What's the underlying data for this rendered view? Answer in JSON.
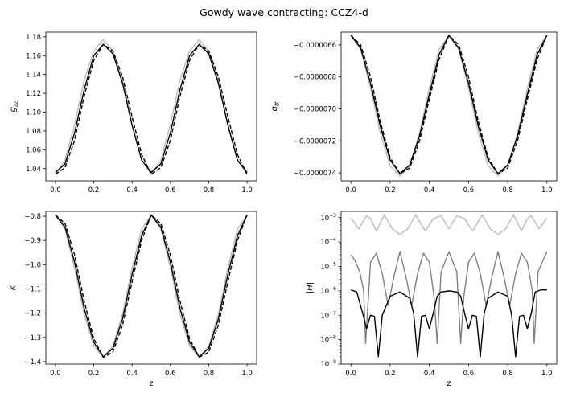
{
  "figure": {
    "title": "Gowdy wave contracting: CCZ4-d"
  },
  "chart_data": [
    {
      "type": "line",
      "ylabel": "g_zz",
      "xlabel": "",
      "xlim": [
        -0.05,
        1.05
      ],
      "ylim": [
        1.027,
        1.185
      ],
      "x_ticks": [
        0.0,
        0.2,
        0.4,
        0.6,
        0.8,
        1.0
      ],
      "x_tick_labels": [
        "0.0",
        "0.2",
        "0.4",
        "0.6",
        "0.8",
        "1.0"
      ],
      "y_ticks": [
        1.04,
        1.06,
        1.08,
        1.1,
        1.12,
        1.14,
        1.16,
        1.18
      ],
      "y_tick_labels": [
        "1.04",
        "1.06",
        "1.08",
        "1.10",
        "1.12",
        "1.14",
        "1.16",
        "1.18"
      ],
      "yscale": "linear",
      "grid": false,
      "x": [
        0.0,
        0.05,
        0.1,
        0.15,
        0.2,
        0.25,
        0.3,
        0.35,
        0.4,
        0.45,
        0.5,
        0.55,
        0.6,
        0.65,
        0.7,
        0.75,
        0.8,
        0.85,
        0.9,
        0.95,
        1.0
      ],
      "series": [
        {
          "color": "#bbbbbb",
          "dash": "solid",
          "values": [
            1.034,
            1.049,
            1.087,
            1.134,
            1.165,
            1.177,
            1.165,
            1.134,
            1.087,
            1.049,
            1.034,
            1.049,
            1.087,
            1.134,
            1.165,
            1.177,
            1.165,
            1.134,
            1.087,
            1.049,
            1.034
          ]
        },
        {
          "color": "#000000",
          "dash": "solid",
          "values": [
            1.036,
            1.045,
            1.078,
            1.124,
            1.16,
            1.172,
            1.162,
            1.131,
            1.086,
            1.049,
            1.036,
            1.045,
            1.078,
            1.124,
            1.16,
            1.172,
            1.162,
            1.131,
            1.086,
            1.049,
            1.036
          ]
        },
        {
          "color": "#000000",
          "dash": "dashed",
          "values": [
            1.034,
            1.041,
            1.07,
            1.117,
            1.155,
            1.172,
            1.165,
            1.138,
            1.095,
            1.055,
            1.034,
            1.041,
            1.07,
            1.117,
            1.155,
            1.172,
            1.165,
            1.138,
            1.095,
            1.055,
            1.034
          ]
        }
      ]
    },
    {
      "type": "line",
      "ylabel": "g_tt",
      "xlabel": "",
      "xlim": [
        -0.05,
        1.05
      ],
      "ylim": [
        -7.45e-06,
        -6.52e-06
      ],
      "x_ticks": [
        0.0,
        0.2,
        0.4,
        0.6,
        0.8,
        1.0
      ],
      "x_tick_labels": [
        "0.0",
        "0.2",
        "0.4",
        "0.6",
        "0.8",
        "1.0"
      ],
      "y_ticks": [
        -6.6e-06,
        -6.8e-06,
        -7e-06,
        -7.2e-06,
        -7.4e-06
      ],
      "y_tick_labels": [
        "−0.0000066",
        "−0.0000068",
        "−0.0000070",
        "−0.0000072",
        "−0.0000074"
      ],
      "yscale": "linear",
      "grid": false,
      "x": [
        0.0,
        0.05,
        0.1,
        0.15,
        0.2,
        0.25,
        0.3,
        0.35,
        0.4,
        0.45,
        0.5,
        0.55,
        0.6,
        0.65,
        0.7,
        0.75,
        0.8,
        0.85,
        0.9,
        0.95,
        1.0
      ],
      "series": [
        {
          "color": "#bbbbbb",
          "dash": "solid",
          "values": [
            -6.54e-06,
            -6.629e-06,
            -6.87e-06,
            -7.152e-06,
            -7.356e-06,
            -7.42e-06,
            -7.356e-06,
            -7.152e-06,
            -6.87e-06,
            -6.629e-06,
            -6.54e-06,
            -6.629e-06,
            -6.87e-06,
            -7.152e-06,
            -7.356e-06,
            -7.42e-06,
            -7.356e-06,
            -7.152e-06,
            -6.87e-06,
            -6.629e-06,
            -6.54e-06
          ]
        },
        {
          "color": "#000000",
          "dash": "solid",
          "values": [
            -6.54e-06,
            -6.62e-06,
            -6.84e-06,
            -7.11e-06,
            -7.32e-06,
            -7.405e-06,
            -7.35e-06,
            -7.17e-06,
            -6.91e-06,
            -6.66e-06,
            -6.54e-06,
            -6.62e-06,
            -6.84e-06,
            -7.11e-06,
            -7.32e-06,
            -7.405e-06,
            -7.35e-06,
            -7.17e-06,
            -6.91e-06,
            -6.66e-06,
            -6.54e-06
          ]
        },
        {
          "color": "#000000",
          "dash": "dashed",
          "values": [
            -6.54e-06,
            -6.6e-06,
            -6.8e-06,
            -7.08e-06,
            -7.305e-06,
            -7.405e-06,
            -7.37e-06,
            -7.2e-06,
            -6.94e-06,
            -6.69e-06,
            -6.54e-06,
            -6.6e-06,
            -6.8e-06,
            -7.08e-06,
            -7.305e-06,
            -7.405e-06,
            -7.37e-06,
            -7.2e-06,
            -6.94e-06,
            -6.69e-06,
            -6.54e-06
          ]
        }
      ]
    },
    {
      "type": "line",
      "ylabel": "K",
      "xlabel": "z",
      "xlim": [
        -0.05,
        1.05
      ],
      "ylim": [
        -1.41,
        -0.78
      ],
      "x_ticks": [
        0.0,
        0.2,
        0.4,
        0.6,
        0.8,
        1.0
      ],
      "x_tick_labels": [
        "0.0",
        "0.2",
        "0.4",
        "0.6",
        "0.8",
        "1.0"
      ],
      "y_ticks": [
        -0.8,
        -0.9,
        -1.0,
        -1.1,
        -1.2,
        -1.3,
        -1.4
      ],
      "y_tick_labels": [
        "−0.8",
        "−0.9",
        "−1.0",
        "−1.1",
        "−1.2",
        "−1.3",
        "−1.4"
      ],
      "yscale": "linear",
      "grid": false,
      "x": [
        0.0,
        0.05,
        0.1,
        0.15,
        0.2,
        0.25,
        0.3,
        0.35,
        0.4,
        0.45,
        0.5,
        0.55,
        0.6,
        0.65,
        0.7,
        0.75,
        0.8,
        0.85,
        0.9,
        0.95,
        1.0
      ],
      "series": [
        {
          "color": "#bbbbbb",
          "dash": "solid",
          "values": [
            -0.795,
            -0.853,
            -1.013,
            -1.205,
            -1.335,
            -1.382,
            -1.335,
            -1.205,
            -1.013,
            -0.853,
            -0.795,
            -0.853,
            -1.013,
            -1.205,
            -1.335,
            -1.382,
            -1.335,
            -1.205,
            -1.013,
            -0.853,
            -0.795
          ]
        },
        {
          "color": "#000000",
          "dash": "solid",
          "values": [
            -0.795,
            -0.845,
            -0.99,
            -1.18,
            -1.32,
            -1.38,
            -1.345,
            -1.225,
            -1.04,
            -0.88,
            -0.795,
            -0.845,
            -0.99,
            -1.18,
            -1.32,
            -1.38,
            -1.345,
            -1.225,
            -1.04,
            -0.88,
            -0.795
          ]
        },
        {
          "color": "#000000",
          "dash": "dashed",
          "values": [
            -0.795,
            -0.83,
            -0.96,
            -1.15,
            -1.305,
            -1.382,
            -1.36,
            -1.25,
            -1.07,
            -0.9,
            -0.795,
            -0.83,
            -0.96,
            -1.15,
            -1.305,
            -1.382,
            -1.36,
            -1.25,
            -1.07,
            -0.9,
            -0.795
          ]
        }
      ]
    },
    {
      "type": "line",
      "ylabel": "|H|",
      "xlabel": "z",
      "xlim": [
        -0.05,
        1.05
      ],
      "ylim": [
        1e-09,
        0.0018
      ],
      "x_ticks": [
        0.0,
        0.2,
        0.4,
        0.6,
        0.8,
        1.0
      ],
      "x_tick_labels": [
        "0.0",
        "0.2",
        "0.4",
        "0.6",
        "0.8",
        "1.0"
      ],
      "y_ticks": [
        1e-09,
        1e-08,
        1e-07,
        1e-06,
        1e-05,
        0.0001,
        0.001
      ],
      "y_tick_labels": [
        {
          "base": "10",
          "exp": "−9"
        },
        {
          "base": "10",
          "exp": "−8"
        },
        {
          "base": "10",
          "exp": "−7"
        },
        {
          "base": "10",
          "exp": "−6"
        },
        {
          "base": "10",
          "exp": "−5"
        },
        {
          "base": "10",
          "exp": "−4"
        },
        {
          "base": "10",
          "exp": "−3"
        }
      ],
      "yscale": "log",
      "grid": false,
      "series": [
        {
          "color": "#bbbbbb",
          "dash": "solid",
          "x": [
            0.0,
            0.04,
            0.08,
            0.1,
            0.13,
            0.17,
            0.21,
            0.25,
            0.29,
            0.33,
            0.38,
            0.42,
            0.46,
            0.5,
            0.54,
            0.58,
            0.62,
            0.67,
            0.71,
            0.75,
            0.79,
            0.83,
            0.87,
            0.9,
            0.92,
            0.96,
            1.0
          ],
          "values": [
            0.00095,
            0.00035,
            0.0012,
            0.0009,
            0.00028,
            0.0013,
            0.00035,
            0.0002,
            0.00035,
            0.0013,
            0.00028,
            0.0009,
            0.0012,
            0.00035,
            0.0012,
            0.0009,
            0.00028,
            0.0013,
            0.00035,
            0.0002,
            0.00035,
            0.0013,
            0.00028,
            0.0009,
            0.0012,
            0.00035,
            0.00095
          ]
        },
        {
          "color": "#808080",
          "dash": "solid",
          "x": [
            0.0,
            0.02,
            0.045,
            0.065,
            0.075,
            0.1,
            0.13,
            0.16,
            0.19,
            0.22,
            0.25,
            0.28,
            0.31,
            0.34,
            0.37,
            0.4,
            0.425,
            0.44,
            0.46,
            0.5,
            0.54,
            0.56,
            0.575,
            0.6,
            0.63,
            0.66,
            0.69,
            0.72,
            0.75,
            0.78,
            0.81,
            0.84,
            0.87,
            0.9,
            0.925,
            0.935,
            0.955,
            0.98,
            1.0
          ],
          "values": [
            3e-05,
            1.8e-05,
            6e-06,
            1e-06,
            7e-09,
            1.5e-05,
            3.5e-05,
            5e-06,
            2.5e-07,
            4e-06,
            4e-05,
            4e-06,
            2.5e-07,
            5e-06,
            3.5e-05,
            1.5e-05,
            5e-07,
            7e-09,
            6e-06,
            4e-05,
            6e-06,
            7e-09,
            5e-07,
            1.5e-05,
            3.5e-05,
            5e-06,
            2.5e-07,
            4e-06,
            4e-05,
            4e-06,
            2.5e-07,
            5e-06,
            3.5e-05,
            1.5e-05,
            1e-06,
            7e-09,
            6e-06,
            1.8e-05,
            4e-05
          ]
        },
        {
          "color": "#000000",
          "dash": "solid",
          "x": [
            0.0,
            0.03,
            0.06,
            0.08,
            0.1,
            0.12,
            0.14,
            0.16,
            0.2,
            0.25,
            0.3,
            0.32,
            0.34,
            0.36,
            0.38,
            0.4,
            0.42,
            0.44,
            0.46,
            0.5,
            0.54,
            0.56,
            0.58,
            0.6,
            0.62,
            0.64,
            0.66,
            0.68,
            0.7,
            0.75,
            0.8,
            0.82,
            0.84,
            0.86,
            0.88,
            0.9,
            0.92,
            0.94,
            0.97,
            1.0
          ],
          "values": [
            1.1e-06,
            9e-07,
            1.2e-07,
            2.8e-08,
            1e-07,
            9e-08,
            2e-09,
            1e-07,
            6e-07,
            9e-07,
            5e-07,
            1.2e-07,
            2e-09,
            9e-08,
            1e-07,
            2.8e-08,
            1.2e-07,
            6e-07,
            9e-07,
            1e-06,
            9e-07,
            6e-07,
            1.2e-07,
            2.8e-08,
            1e-07,
            9e-08,
            2e-09,
            1.2e-07,
            5e-07,
            9e-07,
            6e-07,
            1e-07,
            2e-09,
            9e-08,
            1e-07,
            2.8e-08,
            1.2e-07,
            9e-07,
            1.1e-06,
            1.1e-06
          ]
        }
      ]
    }
  ]
}
